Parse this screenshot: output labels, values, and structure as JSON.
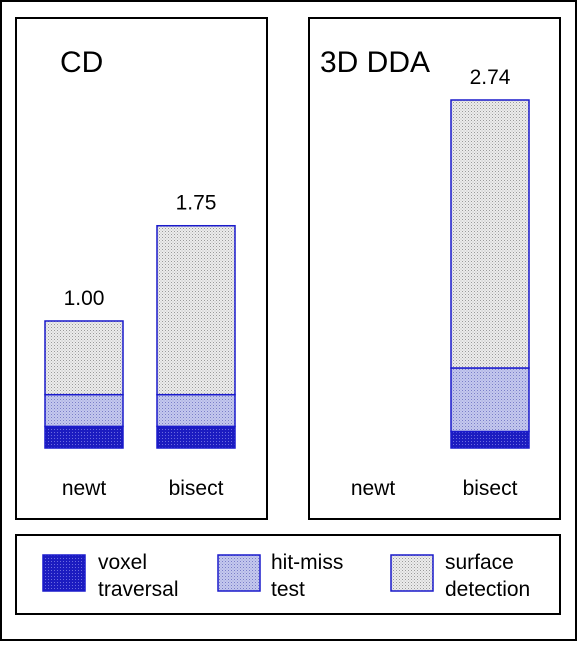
{
  "colors": {
    "border": "#000000",
    "bar_stroke": "#1a1acc",
    "voxel_fill": "#1c1cc0",
    "hitmiss_fill": "#b8bce6",
    "surface_fill": "#dddddd"
  },
  "chart_data": [
    {
      "type": "bar",
      "stacked": true,
      "title": "CD",
      "categories": [
        "newt",
        "bisect"
      ],
      "series": [
        {
          "name": "voxel traversal",
          "values": [
            0.17,
            0.17
          ]
        },
        {
          "name": "hit-miss test",
          "values": [
            0.25,
            0.25
          ]
        },
        {
          "name": "surface detection",
          "values": [
            0.58,
            1.33
          ]
        }
      ],
      "bar_labels": [
        "1.00",
        "1.75"
      ],
      "ylim": [
        0,
        2.74
      ],
      "grid": false
    },
    {
      "type": "bar",
      "stacked": true,
      "title": "3D DDA",
      "categories": [
        "newt",
        "bisect"
      ],
      "series": [
        {
          "name": "voxel traversal",
          "values": [
            null,
            0.13
          ]
        },
        {
          "name": "hit-miss test",
          "values": [
            null,
            0.5
          ]
        },
        {
          "name": "surface detection",
          "values": [
            null,
            2.11
          ]
        }
      ],
      "bar_labels": [
        "",
        "2.74"
      ],
      "ylim": [
        0,
        2.74
      ],
      "grid": false
    }
  ],
  "legend": {
    "items": [
      {
        "line1": "voxel",
        "line2": "traversal",
        "key": "voxel"
      },
      {
        "line1": "hit-miss",
        "line2": "test",
        "key": "hitmiss"
      },
      {
        "line1": "surface",
        "line2": "detection",
        "key": "surface"
      }
    ]
  }
}
